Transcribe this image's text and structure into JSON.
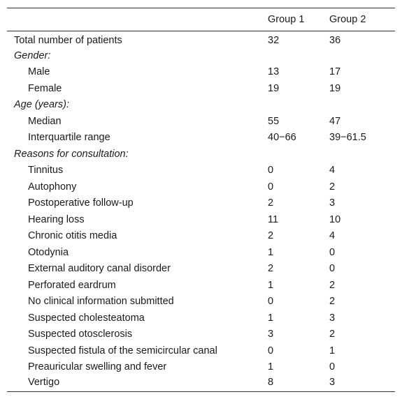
{
  "table": {
    "headers": [
      "",
      "Group 1",
      "Group 2"
    ],
    "rows": [
      {
        "label": "Total number of patients",
        "g1": "32",
        "g2": "36",
        "kind": "top"
      },
      {
        "label": "Gender:",
        "g1": "",
        "g2": "",
        "kind": "category"
      },
      {
        "label": "Male",
        "g1": "13",
        "g2": "17",
        "kind": "sub"
      },
      {
        "label": "Female",
        "g1": "19",
        "g2": "19",
        "kind": "sub"
      },
      {
        "label": "Age (years):",
        "g1": "",
        "g2": "",
        "kind": "category"
      },
      {
        "label": "Median",
        "g1": "55",
        "g2": "47",
        "kind": "sub"
      },
      {
        "label": "Interquartile range",
        "g1": "40−66",
        "g2": "39−61.5",
        "kind": "sub"
      },
      {
        "label": "Reasons for consultation:",
        "g1": "",
        "g2": "",
        "kind": "category"
      },
      {
        "label": "Tinnitus",
        "g1": "0",
        "g2": "4",
        "kind": "sub"
      },
      {
        "label": "Autophony",
        "g1": "0",
        "g2": "2",
        "kind": "sub"
      },
      {
        "label": "Postoperative follow-up",
        "g1": "2",
        "g2": "3",
        "kind": "sub"
      },
      {
        "label": "Hearing loss",
        "g1": "11",
        "g2": "10",
        "kind": "sub"
      },
      {
        "label": "Chronic otitis media",
        "g1": "2",
        "g2": "4",
        "kind": "sub"
      },
      {
        "label": "Otodynia",
        "g1": "1",
        "g2": "0",
        "kind": "sub"
      },
      {
        "label": "External auditory canal disorder",
        "g1": "2",
        "g2": "0",
        "kind": "sub"
      },
      {
        "label": "Perforated eardrum",
        "g1": "1",
        "g2": "2",
        "kind": "sub"
      },
      {
        "label": "No clinical information submitted",
        "g1": "0",
        "g2": "2",
        "kind": "sub"
      },
      {
        "label": "Suspected cholesteatoma",
        "g1": "1",
        "g2": "3",
        "kind": "sub"
      },
      {
        "label": "Suspected otosclerosis",
        "g1": "3",
        "g2": "2",
        "kind": "sub"
      },
      {
        "label": "Suspected fistula of the semicircular canal",
        "g1": "0",
        "g2": "1",
        "kind": "sub"
      },
      {
        "label": "Preauricular swelling and fever",
        "g1": "1",
        "g2": "0",
        "kind": "sub"
      },
      {
        "label": "Vertigo",
        "g1": "8",
        "g2": "3",
        "kind": "sub"
      }
    ]
  }
}
